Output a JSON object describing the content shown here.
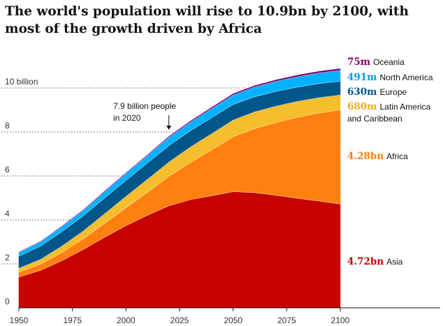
{
  "title": "The world's population will rise to 10.9bn by 2100, with most of the growth driven by Africa",
  "chart_data": {
    "type": "area",
    "stacked": true,
    "x": [
      1950,
      1960,
      1970,
      1980,
      1990,
      2000,
      2010,
      2020,
      2030,
      2040,
      2050,
      2060,
      2070,
      2080,
      2090,
      2100
    ],
    "x_ticks": [
      "1950",
      "1975",
      "2000",
      "2025",
      "2050",
      "2075",
      "2100"
    ],
    "y_ticks": [
      "0",
      "2",
      "4",
      "6",
      "8",
      "10 billion"
    ],
    "ylim": [
      0,
      11
    ],
    "series": [
      {
        "name": "Asia",
        "value_label": "4.72bn",
        "color": "#c70000",
        "values": [
          1.4,
          1.7,
          2.14,
          2.65,
          3.21,
          3.74,
          4.21,
          4.64,
          4.92,
          5.1,
          5.29,
          5.24,
          5.12,
          4.98,
          4.86,
          4.72
        ]
      },
      {
        "name": "Africa",
        "value_label": "4.28bn",
        "color": "#ff7f0f",
        "values": [
          0.23,
          0.28,
          0.37,
          0.48,
          0.63,
          0.81,
          1.04,
          1.34,
          1.69,
          2.08,
          2.49,
          2.91,
          3.31,
          3.69,
          4.0,
          4.28
        ]
      },
      {
        "name": "Latin America and Caribbean",
        "value_label": "680m",
        "color": "#f5be2c",
        "values": [
          0.17,
          0.22,
          0.29,
          0.36,
          0.44,
          0.52,
          0.59,
          0.65,
          0.7,
          0.74,
          0.76,
          0.76,
          0.74,
          0.72,
          0.7,
          0.68
        ]
      },
      {
        "name": "Europe",
        "value_label": "630m",
        "color": "#005689",
        "values": [
          0.55,
          0.6,
          0.66,
          0.69,
          0.72,
          0.73,
          0.74,
          0.75,
          0.74,
          0.73,
          0.71,
          0.69,
          0.67,
          0.65,
          0.64,
          0.63
        ]
      },
      {
        "name": "North America",
        "value_label": "491m",
        "color": "#00b2ff",
        "values": [
          0.17,
          0.2,
          0.23,
          0.25,
          0.28,
          0.31,
          0.34,
          0.37,
          0.39,
          0.41,
          0.43,
          0.44,
          0.46,
          0.47,
          0.48,
          0.49
        ]
      },
      {
        "name": "Oceania",
        "value_label": "75m",
        "color": "#7d0068",
        "values": [
          0.013,
          0.016,
          0.02,
          0.023,
          0.027,
          0.031,
          0.037,
          0.043,
          0.048,
          0.054,
          0.058,
          0.063,
          0.066,
          0.07,
          0.073,
          0.075
        ]
      }
    ],
    "annotation": {
      "line1": "7.9 billion people",
      "line2": "in 2020",
      "x": 2020,
      "y": 7.9
    }
  }
}
